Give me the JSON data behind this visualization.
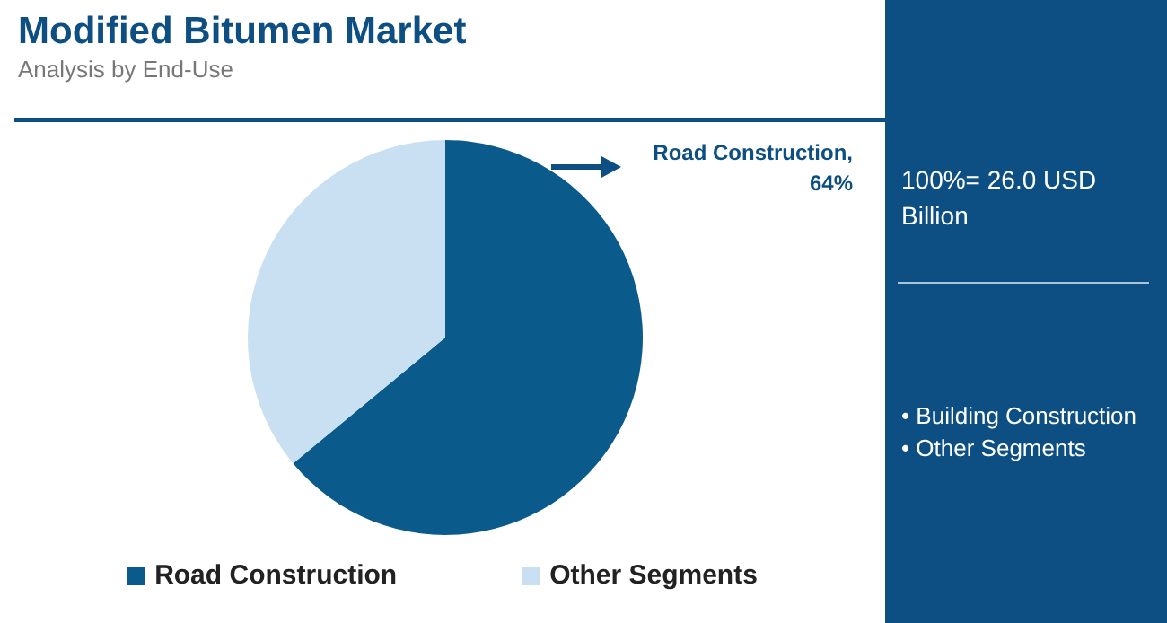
{
  "chart_data": {
    "type": "pie",
    "title": "Modified Bitumen Market",
    "subtitle": "Analysis by End-Use",
    "categories": [
      "Road Construction",
      "Other Segments"
    ],
    "values": [
      64,
      36
    ],
    "colors": [
      "#0b5a8c",
      "#c8e0f1"
    ],
    "legend": "bottom",
    "annotations": [
      "Road Construction, 64%",
      "100%= 26.0 USD Billion",
      "• Building Construction",
      "• Other Segments"
    ]
  }
}
